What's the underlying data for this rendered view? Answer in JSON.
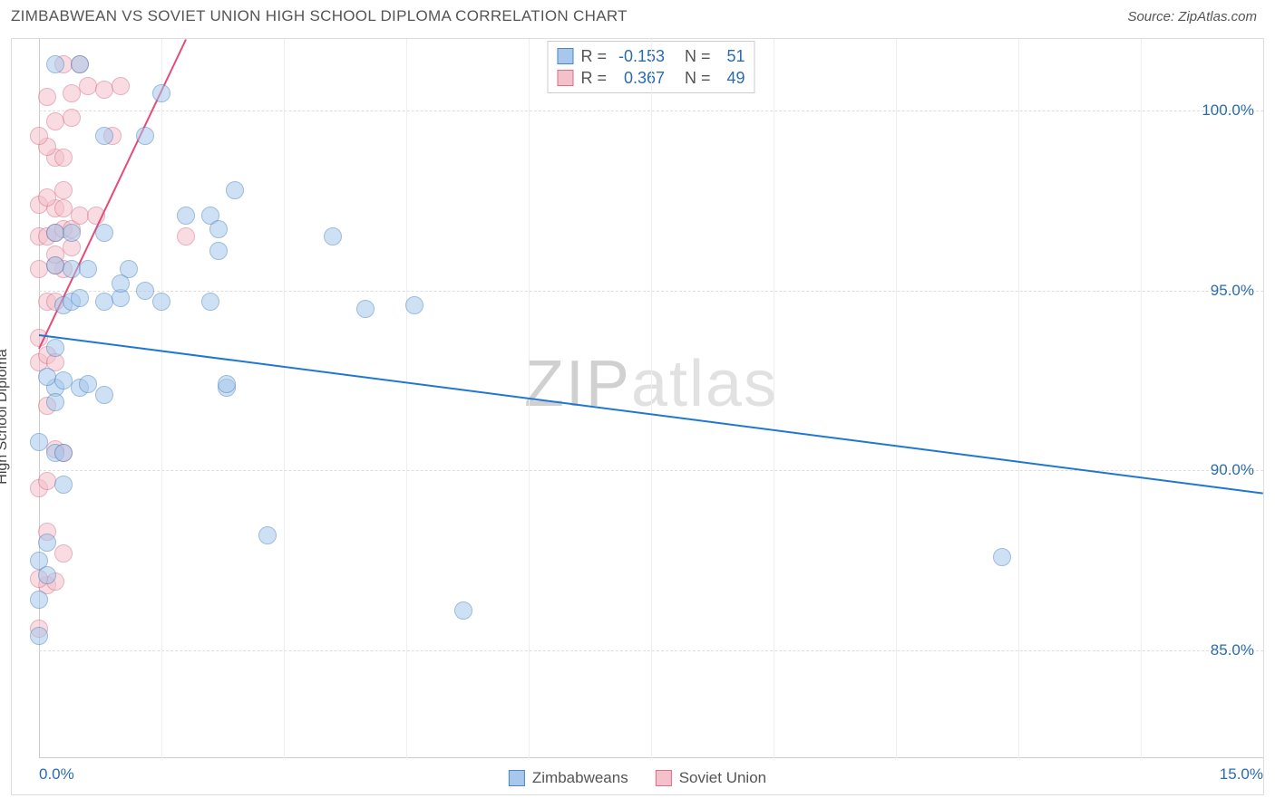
{
  "header": {
    "title": "ZIMBABWEAN VS SOVIET UNION HIGH SCHOOL DIPLOMA CORRELATION CHART",
    "source": "Source: ZipAtlas.com"
  },
  "chart": {
    "type": "scatter",
    "y_axis_label": "High School Diploma",
    "xlim": [
      0,
      15
    ],
    "ylim": [
      82,
      102
    ],
    "x_ticks": [
      0,
      15
    ],
    "x_tick_labels": [
      "0.0%",
      "15.0%"
    ],
    "y_ticks": [
      85,
      90,
      95,
      100
    ],
    "y_tick_labels": [
      "85.0%",
      "90.0%",
      "95.0%",
      "100.0%"
    ],
    "v_gridlines": [
      1.5,
      3.0,
      4.5,
      6.0,
      7.5,
      9.0,
      10.5,
      12.0,
      13.5
    ],
    "background_color": "#ffffff",
    "grid_color": "#dddddd",
    "axis_color": "#cccccc",
    "marker_radius": 10,
    "marker_opacity": 0.55,
    "marker_border_width": 1,
    "series": {
      "zimbabweans": {
        "label": "Zimbabweans",
        "fill_color": "#a7c7ec",
        "border_color": "#4a87c2",
        "line_color": "#1f77d4",
        "R": "-0.153",
        "N": "51",
        "regression": {
          "x1": 0,
          "y1": 93.8,
          "x2": 15,
          "y2": 89.4
        },
        "points": [
          [
            0.0,
            87.5
          ],
          [
            0.0,
            85.4
          ],
          [
            0.1,
            87.1
          ],
          [
            0.0,
            86.4
          ],
          [
            0.1,
            88.0
          ],
          [
            0.2,
            90.5
          ],
          [
            0.0,
            90.8
          ],
          [
            0.3,
            90.5
          ],
          [
            0.2,
            92.3
          ],
          [
            0.1,
            92.6
          ],
          [
            0.3,
            92.5
          ],
          [
            0.5,
            92.3
          ],
          [
            0.6,
            92.4
          ],
          [
            0.8,
            92.1
          ],
          [
            0.2,
            93.4
          ],
          [
            0.3,
            94.6
          ],
          [
            0.4,
            94.7
          ],
          [
            0.5,
            94.8
          ],
          [
            0.8,
            94.7
          ],
          [
            1.0,
            94.8
          ],
          [
            1.5,
            94.7
          ],
          [
            1.1,
            95.6
          ],
          [
            0.2,
            95.7
          ],
          [
            0.4,
            95.6
          ],
          [
            0.6,
            95.6
          ],
          [
            0.2,
            96.6
          ],
          [
            0.4,
            96.6
          ],
          [
            0.8,
            96.6
          ],
          [
            1.0,
            95.2
          ],
          [
            1.3,
            95.0
          ],
          [
            1.8,
            97.1
          ],
          [
            0.8,
            99.3
          ],
          [
            1.3,
            99.3
          ],
          [
            1.5,
            100.5
          ],
          [
            2.1,
            97.1
          ],
          [
            2.4,
            97.8
          ],
          [
            2.2,
            96.7
          ],
          [
            2.2,
            96.1
          ],
          [
            2.1,
            94.7
          ],
          [
            2.3,
            92.3
          ],
          [
            2.3,
            92.4
          ],
          [
            2.8,
            88.2
          ],
          [
            3.6,
            96.5
          ],
          [
            4.0,
            94.5
          ],
          [
            4.6,
            94.6
          ],
          [
            5.2,
            86.1
          ],
          [
            11.8,
            87.6
          ],
          [
            0.2,
            91.9
          ],
          [
            0.2,
            101.3
          ],
          [
            0.5,
            101.3
          ],
          [
            0.3,
            89.6
          ]
        ]
      },
      "soviet": {
        "label": "Soviet Union",
        "fill_color": "#f4c0c9",
        "border_color": "#d8708a",
        "line_color": "#e54b76",
        "R": "0.367",
        "N": "49",
        "regression": {
          "x1": 0,
          "y1": 93.4,
          "x2": 1.8,
          "y2": 102.0
        },
        "points": [
          [
            0.0,
            85.6
          ],
          [
            0.1,
            86.8
          ],
          [
            0.2,
            86.9
          ],
          [
            0.0,
            87.0
          ],
          [
            0.3,
            87.7
          ],
          [
            0.1,
            88.3
          ],
          [
            0.0,
            89.5
          ],
          [
            0.1,
            89.7
          ],
          [
            0.2,
            90.6
          ],
          [
            0.3,
            90.5
          ],
          [
            0.1,
            91.8
          ],
          [
            0.0,
            93.0
          ],
          [
            0.1,
            93.2
          ],
          [
            0.2,
            93.0
          ],
          [
            0.0,
            93.7
          ],
          [
            0.1,
            94.7
          ],
          [
            0.2,
            94.7
          ],
          [
            0.3,
            95.6
          ],
          [
            0.2,
            95.7
          ],
          [
            0.0,
            95.6
          ],
          [
            0.2,
            96.0
          ],
          [
            0.4,
            96.2
          ],
          [
            0.0,
            96.5
          ],
          [
            0.1,
            96.5
          ],
          [
            0.2,
            96.6
          ],
          [
            0.3,
            96.7
          ],
          [
            0.4,
            96.7
          ],
          [
            0.2,
            97.3
          ],
          [
            0.3,
            97.3
          ],
          [
            0.0,
            97.4
          ],
          [
            0.1,
            97.6
          ],
          [
            0.3,
            97.8
          ],
          [
            0.5,
            97.1
          ],
          [
            0.7,
            97.1
          ],
          [
            0.2,
            98.7
          ],
          [
            0.3,
            98.7
          ],
          [
            0.1,
            99.0
          ],
          [
            0.0,
            99.3
          ],
          [
            0.2,
            99.7
          ],
          [
            0.4,
            99.8
          ],
          [
            0.1,
            100.4
          ],
          [
            0.4,
            100.5
          ],
          [
            0.6,
            100.7
          ],
          [
            0.8,
            100.6
          ],
          [
            1.0,
            100.7
          ],
          [
            0.3,
            101.3
          ],
          [
            0.5,
            101.3
          ],
          [
            0.9,
            99.3
          ],
          [
            1.8,
            96.5
          ]
        ]
      }
    },
    "watermark": {
      "prefix": "ZIP",
      "suffix": "atlas",
      "prefix_color": "rgba(120,120,120,0.35)",
      "suffix_color": "rgba(170,170,170,0.35)",
      "prefix_weight": 300,
      "suffix_weight": 300
    },
    "legend_stats_label_R": "R =",
    "legend_stats_label_N": "N ="
  }
}
